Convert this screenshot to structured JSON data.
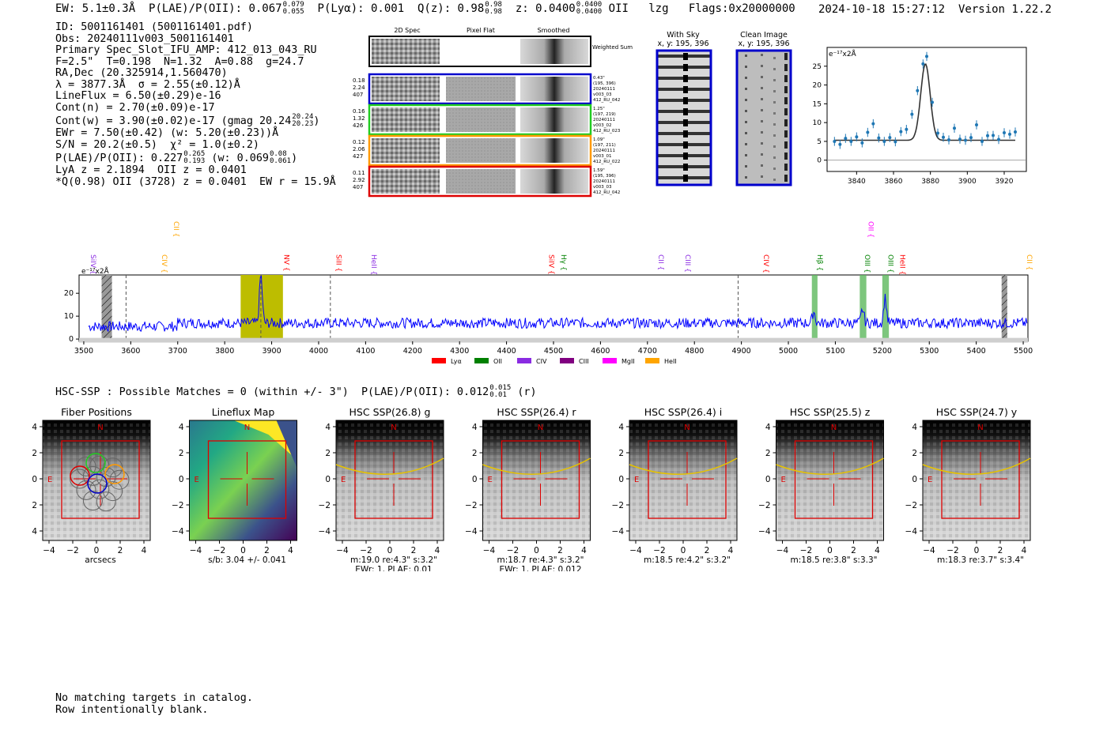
{
  "header": {
    "ew": "EW: 5.1±0.3Å",
    "plae_label": "P(LAE)/P(OII): 0.067",
    "plae_hi": "0.079",
    "plae_lo": "0.055",
    "plya": "P(Lyα): 0.001",
    "qz": "Q(z): 0.98",
    "qz_hi": "0.98",
    "qz_lo": "0.98",
    "z": "z: 0.0400",
    "z_hi": "0.0400",
    "z_lo": "0.0400",
    "line": "OII",
    "lzg": "lzg",
    "flags": "Flags:0x20000000",
    "timestamp": "2024-10-18 15:27:12",
    "version": "Version 1.22.2"
  },
  "info": {
    "id": "ID: 5001161401 (5001161401.pdf)",
    "obs": "Obs: 20240111v003_5001161401",
    "primary": "Primary Spec_Slot_IFU_AMP: 412_013_043_RU",
    "params": "F=2.5\"  T=0.198  N=1.32  A=0.88  g=24.7",
    "radec": "RA,Dec (20.325914,1.560470)",
    "lambda": "λ = 3877.3Å  σ = 2.55(±0.12)Å",
    "lineflux": "LineFlux = 6.50(±0.29)e-16",
    "contn": "Cont(n) = 2.70(±0.09)e-17",
    "contw": "Cont(w) = 3.90(±0.02)e-17 (gmag 20.24",
    "gmag_hi": "20.24",
    "gmag_lo": "20.23",
    "ewr": "EWr = 7.50(±0.42) (w: 5.20(±0.23))Å",
    "sn": "S/N = 20.2(±0.5)  χ² = 1.0(±0.2)",
    "plae2": "P(LAE)/P(OII): 0.227",
    "plae2_hi": "0.265",
    "plae2_lo": "0.193",
    "plae2_w": "(w: 0.069",
    "plae2_w_hi": "0.08",
    "plae2_w_lo": "0.061",
    "lya": "LyA z = 2.1894  OII z = 0.0401",
    "q": "*Q(0.98) OII (3728) z = 0.0401  EW r = 15.9Å"
  },
  "cutouts": {
    "col_2d": "2D Spec",
    "col_flat": "Pixel Flat",
    "col_smooth": "Smoothed",
    "weighted": "Weighted Sum",
    "rows": [
      {
        "left": [
          "0.18",
          "2.24",
          "407"
        ],
        "right": [
          "0.43\"",
          "(195, 396)",
          "20240111",
          "v003_03",
          "412_RU_042"
        ],
        "color": "#0000cc"
      },
      {
        "left": [
          "0.16",
          "1.32",
          "426"
        ],
        "right": [
          "1.25\"",
          "(197, 219)",
          "20240111",
          "v003_02",
          "412_RU_023"
        ],
        "color": "#22cc22"
      },
      {
        "left": [
          "0.12",
          "2.06",
          "427"
        ],
        "right": [
          "1.09\"",
          "(197, 211)",
          "20240111",
          "v003_01",
          "412_RU_022"
        ],
        "color": "#ff9900"
      },
      {
        "left": [
          "0.11",
          "2.92",
          "407"
        ],
        "right": [
          "1.59\"",
          "(195, 396)",
          "20240111",
          "v003_03",
          "412_RU_042"
        ],
        "color": "#dd0000"
      }
    ]
  },
  "sky": {
    "with_sky_title": "With Sky",
    "with_sky_coord": "x, y: 195, 396",
    "clean_title": "Clean Image",
    "clean_coord": "x, y: 195, 396"
  },
  "zoom_chart_data": {
    "type": "scatter",
    "title": "",
    "unit_label": "e⁻¹⁷x2Å",
    "xlim": [
      3824,
      3932
    ],
    "ylim": [
      -3,
      30
    ],
    "xticks": [
      3840,
      3860,
      3880,
      3900,
      3920
    ],
    "yticks": [
      0,
      5,
      10,
      15,
      20,
      25
    ],
    "x": [
      3828,
      3831,
      3834,
      3837,
      3840,
      3843,
      3846,
      3849,
      3852,
      3855,
      3858,
      3861,
      3864,
      3867,
      3870,
      3873,
      3876,
      3878,
      3881,
      3884,
      3887,
      3890,
      3893,
      3896,
      3899,
      3902,
      3905,
      3908,
      3911,
      3914,
      3917,
      3920,
      3923,
      3926
    ],
    "y": [
      5.0,
      4.2,
      5.8,
      5.0,
      6.2,
      4.6,
      7.4,
      9.7,
      5.9,
      5.0,
      6.0,
      4.9,
      7.6,
      8.2,
      12.2,
      18.5,
      25.6,
      27.6,
      15.4,
      7.2,
      6.1,
      5.4,
      8.5,
      5.6,
      5.3,
      6.0,
      9.4,
      5.0,
      6.5,
      6.6,
      5.5,
      7.3,
      6.9,
      7.5
    ],
    "fit_center": 3877.3,
    "fit_sigma": 2.55,
    "fit_continuum": 5.3,
    "fit_peak": 25.6
  },
  "chart_data": {
    "type": "line",
    "title": "",
    "unit_label": "e⁻¹⁷x2Å",
    "xlim": [
      3490,
      5510
    ],
    "ylim": [
      -1,
      28
    ],
    "xticks": [
      3500,
      3600,
      3700,
      3800,
      3900,
      4000,
      4100,
      4200,
      4300,
      4400,
      4500,
      4600,
      4700,
      4800,
      4900,
      5000,
      5100,
      5200,
      5300,
      5400,
      5500
    ],
    "yticks": [
      0,
      10,
      20
    ],
    "series": [
      {
        "name": "spectrum",
        "color": "#0000ff",
        "baseline": 7,
        "peaks": [
          {
            "x": 3877,
            "h": 28
          },
          {
            "x": 5054,
            "h": 12
          },
          {
            "x": 5158,
            "h": 13
          },
          {
            "x": 5206,
            "h": 18
          }
        ]
      }
    ],
    "highlight_band": [
      3834,
      3924
    ],
    "dashed_lines": [
      3590,
      3877,
      4025,
      4893
    ],
    "hatched_bands": [
      [
        3538,
        3560
      ],
      [
        5454,
        5466
      ]
    ],
    "green_bands": [
      [
        5050,
        5062
      ],
      [
        5152,
        5166
      ],
      [
        5200,
        5214
      ]
    ],
    "line_labels": [
      {
        "x": 3510,
        "label": "SiIV",
        "color": "#8a2be2",
        "level": 0
      },
      {
        "x": 3662,
        "label": "CIV",
        "color": "#ffa500",
        "level": 0
      },
      {
        "x": 3687,
        "label": "CII",
        "color": "#ffa500",
        "level": 1
      },
      {
        "x": 3922,
        "label": "NV",
        "color": "#ff0000",
        "level": 0
      },
      {
        "x": 4033,
        "label": "SiII",
        "color": "#ff0000",
        "level": 0
      },
      {
        "x": 4108,
        "label": "HeII",
        "color": "#8a2be2",
        "level": 0
      },
      {
        "x": 4486,
        "label": "SiIV",
        "color": "#ff0000",
        "level": 0
      },
      {
        "x": 4512,
        "label": "Hγ",
        "color": "#008000",
        "level": 0
      },
      {
        "x": 4719,
        "label": "CII",
        "color": "#8a2be2",
        "level": 0
      },
      {
        "x": 4776,
        "label": "CIII",
        "color": "#8a2be2",
        "level": 0
      },
      {
        "x": 4943,
        "label": "CIV",
        "color": "#ff0000",
        "level": 0
      },
      {
        "x": 5057,
        "label": "Hβ",
        "color": "#008000",
        "level": 0
      },
      {
        "x": 5158,
        "label": "OIII",
        "color": "#008000",
        "level": 0
      },
      {
        "x": 5166,
        "label": "OII",
        "color": "#ff00ff",
        "level": 1
      },
      {
        "x": 5208,
        "label": "OIII",
        "color": "#008000",
        "level": 0
      },
      {
        "x": 5233,
        "label": "HeII",
        "color": "#ff0000",
        "level": 0
      },
      {
        "x": 5503,
        "label": "CII",
        "color": "#ffa500",
        "level": 0
      }
    ],
    "legend": [
      {
        "label": "Lyα",
        "color": "#ff0000"
      },
      {
        "label": "OII",
        "color": "#008000"
      },
      {
        "label": "CIV",
        "color": "#8a2be2"
      },
      {
        "label": "CIII",
        "color": "#800080"
      },
      {
        "label": "MgII",
        "color": "#ff00ff"
      },
      {
        "label": "HeII",
        "color": "#ffa500"
      }
    ]
  },
  "hsc": {
    "summary": "HSC-SSP : Possible Matches = 0 (within +/- 3\")  P(LAE)/P(OII): 0.012",
    "summary_hi": "0.015",
    "summary_lo": "0.01",
    "summary_band": "(r)",
    "ticks": [
      "4",
      "2",
      "0",
      "−2",
      "−4"
    ],
    "xticks": [
      "−4",
      "−2",
      "0",
      "2",
      "4"
    ],
    "north": "N",
    "east": "E",
    "panels": [
      {
        "title": "Fiber Positions",
        "caption1": "arcsecs",
        "caption2": "",
        "kind": "fiber"
      },
      {
        "title": "Lineflux Map",
        "caption1": "s/b: 3.04 +/- 0.041",
        "caption2": "",
        "kind": "flux"
      },
      {
        "title": "HSC SSP(26.8) g",
        "caption1": "m:19.0  re:4.3\"  s:3.2\"",
        "caption2": "EWr: 1, PLAE: 0.01",
        "kind": "img"
      },
      {
        "title": "HSC SSP(26.4) r",
        "caption1": "m:18.7  re:4.3\"  s:3.2\"",
        "caption2": "EWr: 1, PLAE: 0.012",
        "kind": "img"
      },
      {
        "title": "HSC SSP(26.4) i",
        "caption1": "m:18.5  re:4.2\"  s:3.2\"",
        "caption2": "",
        "kind": "img"
      },
      {
        "title": "HSC SSP(25.5) z",
        "caption1": "m:18.5  re:3.8\"  s:3.3\"",
        "caption2": "",
        "kind": "img"
      },
      {
        "title": "HSC SSP(24.7) y",
        "caption1": "m:18.3  re:3.7\"  s:3.4\"",
        "caption2": "",
        "kind": "img"
      }
    ]
  },
  "footer": {
    "line1": "No matching targets in catalog.",
    "line2": "Row intentionally blank."
  }
}
